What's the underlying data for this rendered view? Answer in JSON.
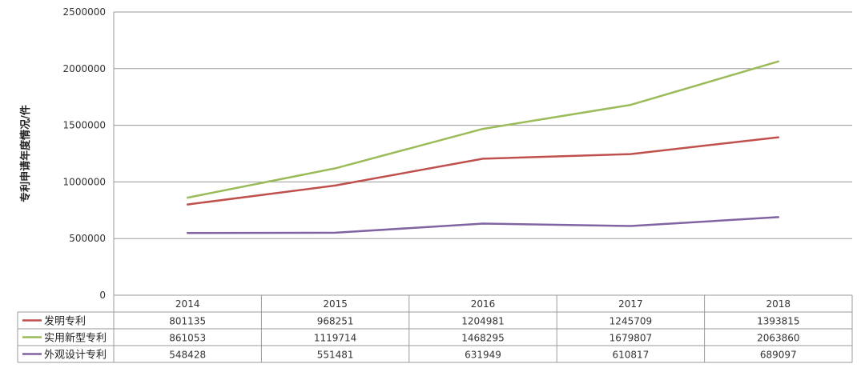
{
  "chart_data": {
    "type": "line",
    "title": "",
    "ylabel": "专利申请年度情况/件",
    "xlabel": "",
    "categories": [
      "2014",
      "2015",
      "2016",
      "2017",
      "2018"
    ],
    "ylim": [
      0,
      2500000
    ],
    "yticks": [
      0,
      500000,
      1000000,
      1500000,
      2000000,
      2500000
    ],
    "grid": true,
    "legend": "data-table",
    "series": [
      {
        "name": "发明专利",
        "color": "#c0504d",
        "values": [
          801135,
          968251,
          1204981,
          1245709,
          1393815
        ]
      },
      {
        "name": "实用新型专利",
        "color": "#9bbb59",
        "values": [
          861053,
          1119714,
          1468295,
          1679807,
          2063860
        ]
      },
      {
        "name": "外观设计专利",
        "color": "#8064a2",
        "values": [
          548428,
          551481,
          631949,
          610817,
          689097
        ]
      }
    ]
  }
}
